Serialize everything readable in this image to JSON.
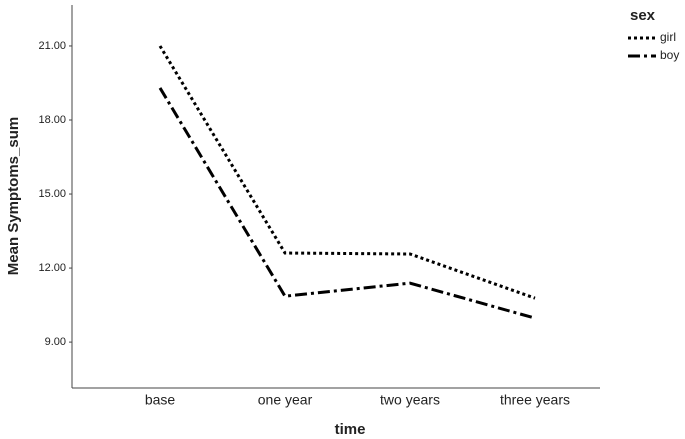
{
  "chart_data": {
    "type": "line",
    "x_label": "time",
    "y_label": "Mean Symptoms_sum",
    "legend_title": "sex",
    "categories": [
      "base",
      "one year",
      "two years",
      "three years"
    ],
    "series": [
      {
        "name": "girl",
        "color": "#000000",
        "dash": "dotted",
        "values": [
          21.0,
          12.61,
          12.57,
          10.78
        ]
      },
      {
        "name": "boy",
        "color": "#000000",
        "dash": "dashdot",
        "values": [
          19.3,
          10.86,
          11.39,
          9.97
        ]
      }
    ],
    "ylim": [
      7.14,
      22.66
    ],
    "yticks": [
      {
        "value": 9,
        "label": "9.00"
      },
      {
        "value": 12,
        "label": "12.00"
      },
      {
        "value": 15,
        "label": "15.00"
      },
      {
        "value": 18,
        "label": "18.00"
      },
      {
        "value": 21,
        "label": "21.00"
      }
    ],
    "legend": "top-right"
  }
}
